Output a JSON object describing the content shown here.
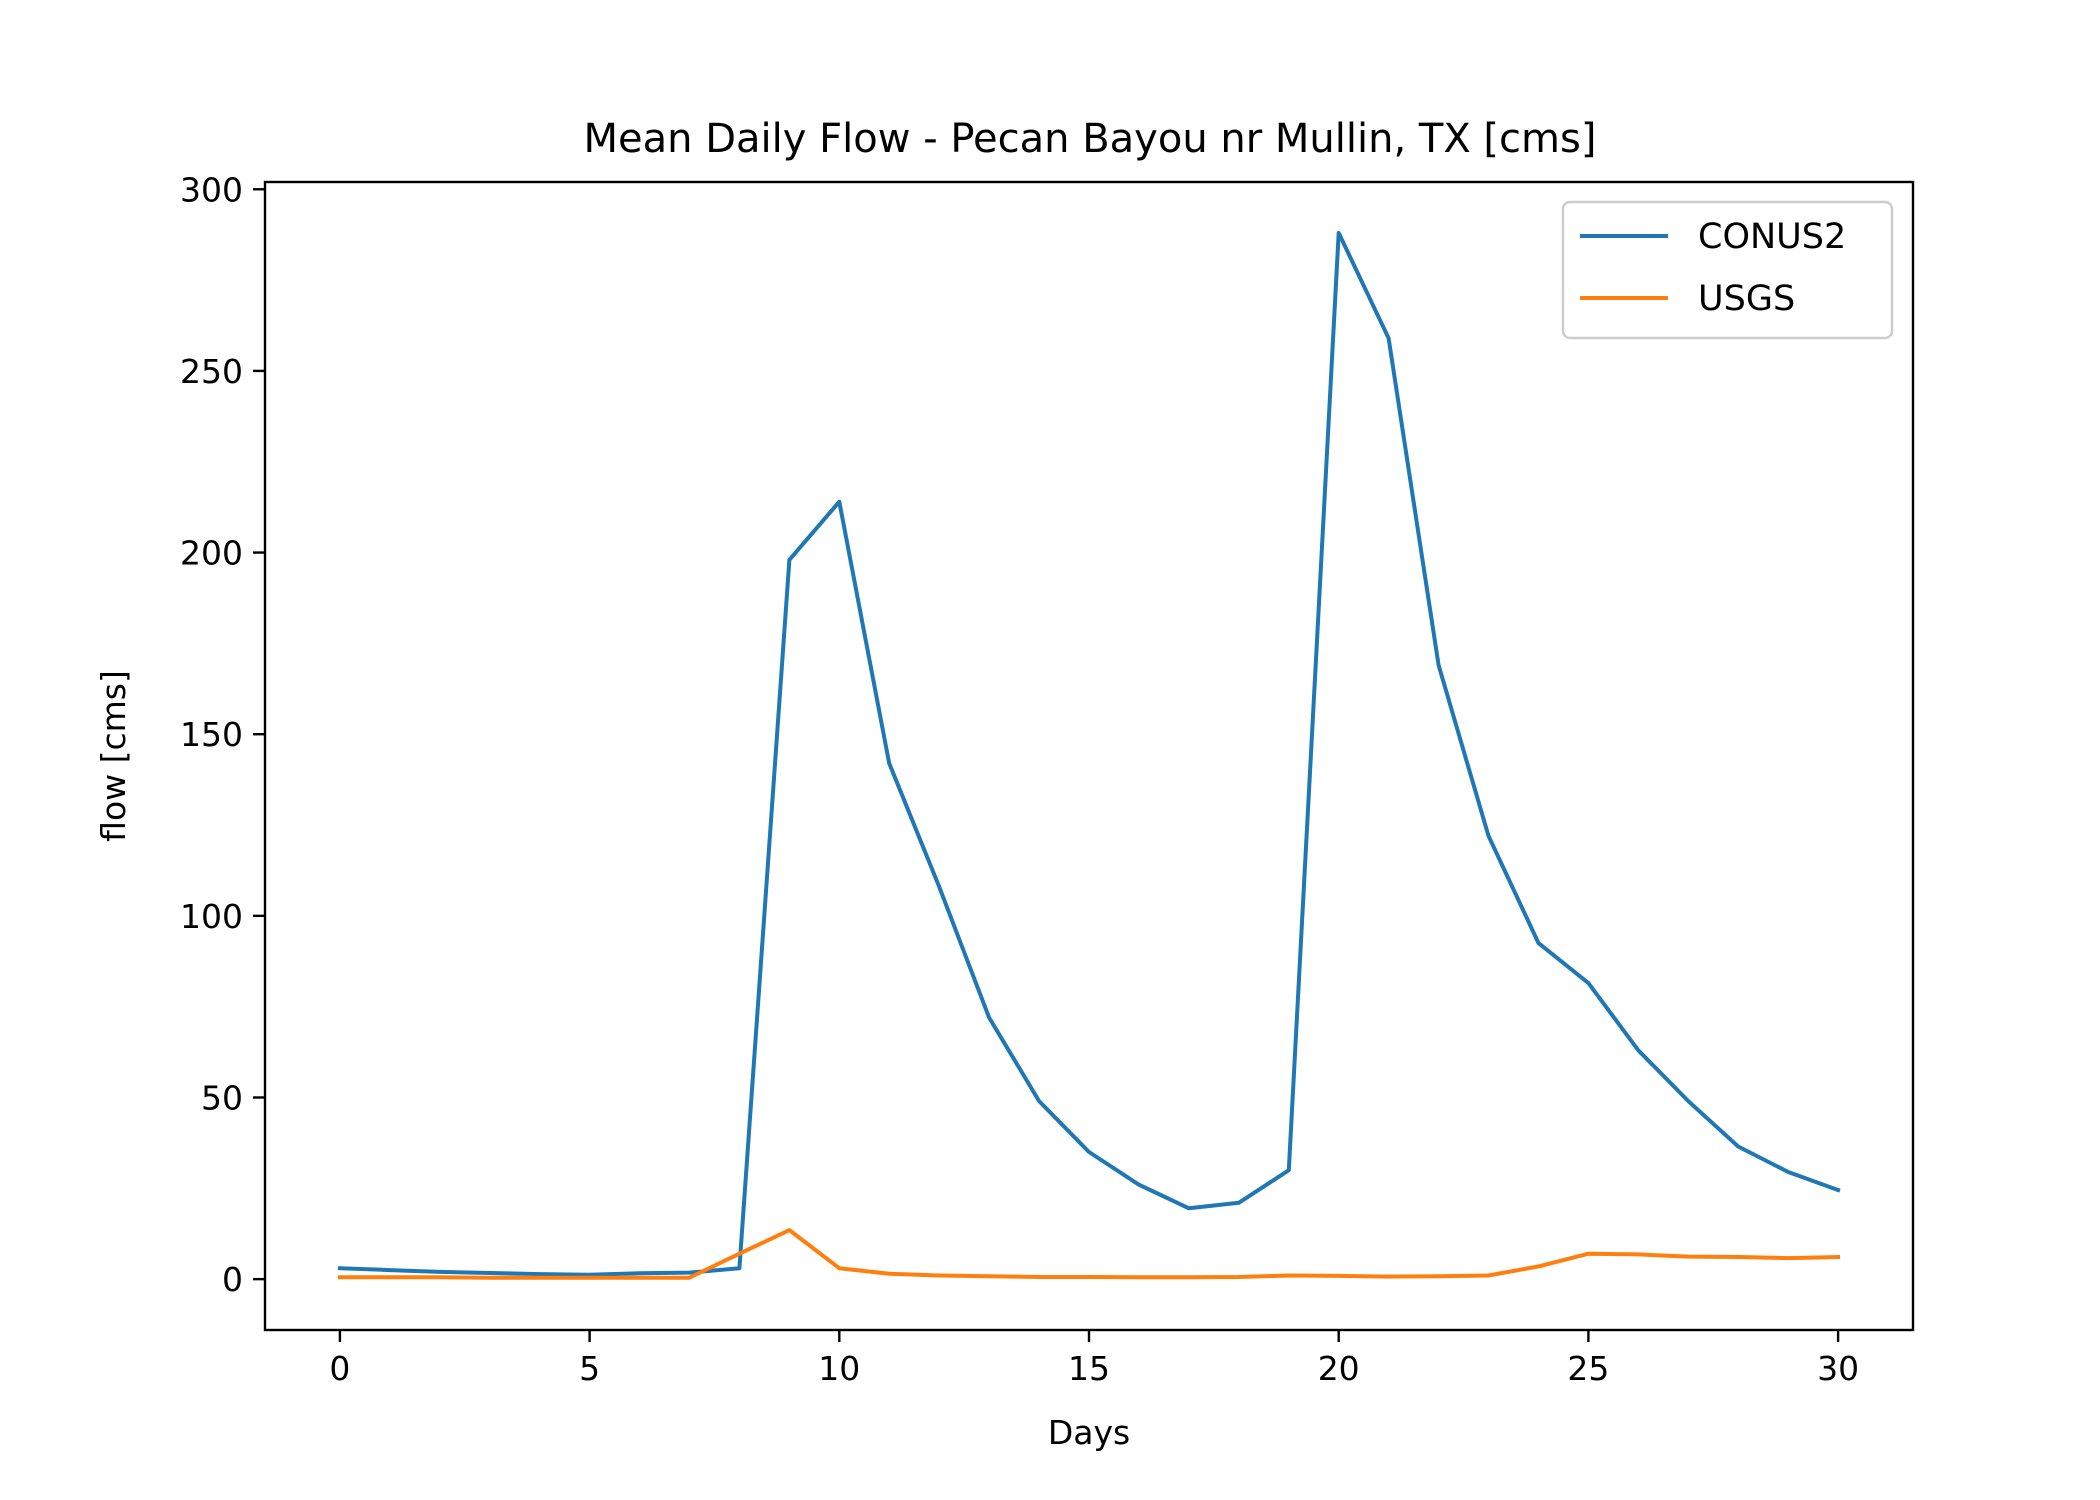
{
  "chart_data": {
    "type": "line",
    "title": "Mean Daily Flow - Pecan Bayou nr Mullin, TX [cms]",
    "xlabel": "Days",
    "ylabel": "flow [cms]",
    "xlim": [
      -1.5,
      31.5
    ],
    "ylim": [
      -14,
      302
    ],
    "xticks": [
      0,
      5,
      10,
      15,
      20,
      25,
      30
    ],
    "yticks": [
      0,
      50,
      100,
      150,
      200,
      250,
      300
    ],
    "grid": false,
    "legend_position": "upper right",
    "x": [
      0,
      1,
      2,
      3,
      4,
      5,
      6,
      7,
      8,
      9,
      10,
      11,
      12,
      13,
      14,
      15,
      16,
      17,
      18,
      19,
      20,
      21,
      22,
      23,
      24,
      25,
      26,
      27,
      28,
      29,
      30
    ],
    "series": [
      {
        "name": "CONUS2",
        "color": "#1f77b4",
        "values": [
          3,
          2.5,
          2,
          1.7,
          1.4,
          1.2,
          1.6,
          1.8,
          3,
          198,
          214,
          142,
          108,
          72,
          49,
          35,
          26,
          19.5,
          21,
          30,
          288,
          259,
          169,
          122,
          92.5,
          81.5,
          63,
          49,
          36.5,
          29.5,
          24.5
        ]
      },
      {
        "name": "USGS",
        "color": "#ff7f0e",
        "values": [
          0.5,
          0.5,
          0.5,
          0.4,
          0.4,
          0.4,
          0.4,
          0.4,
          7,
          13.5,
          3,
          1.5,
          1,
          0.8,
          0.6,
          0.6,
          0.5,
          0.5,
          0.6,
          1,
          0.9,
          0.7,
          0.8,
          1,
          3.5,
          7,
          6.8,
          6.2,
          6.1,
          5.8,
          6.1
        ]
      }
    ]
  }
}
